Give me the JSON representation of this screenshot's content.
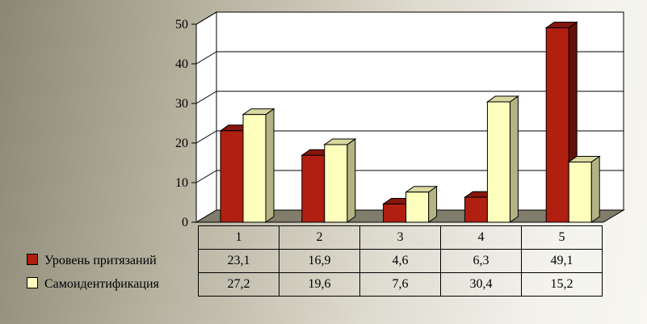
{
  "chart_data": {
    "type": "bar",
    "categories": [
      "1",
      "2",
      "3",
      "4",
      "5"
    ],
    "ylim": [
      0,
      50
    ],
    "yticks": [
      0,
      10,
      20,
      30,
      40,
      50
    ],
    "grid": true,
    "legend_position": "bottom-left (data table)",
    "series": [
      {
        "name": "Уровень притязаний",
        "color": "#b11f10",
        "values": [
          23.1,
          16.9,
          4.6,
          6.3,
          49.1
        ],
        "labels": [
          "23,1",
          "16,9",
          "4,6",
          "6,3",
          "49,1"
        ]
      },
      {
        "name": "Самоидентификация",
        "color": "#ffffbd",
        "values": [
          27.2,
          19.6,
          7.6,
          30.4,
          15.2
        ],
        "labels": [
          "27,2",
          "19,6",
          "7,6",
          "30,4",
          "15,2"
        ]
      }
    ]
  }
}
